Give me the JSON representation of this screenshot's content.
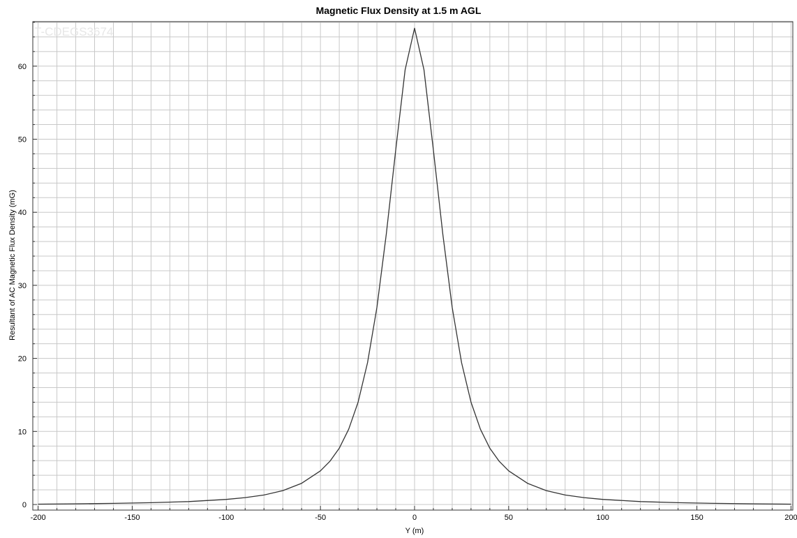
{
  "chart_data": {
    "type": "line",
    "title": "Magnetic Flux Density at 1.5 m AGL",
    "xlabel": "Y (m)",
    "ylabel": "Resultant of AC Magnetic Flux Density (mG)",
    "xlim": [
      -200,
      200
    ],
    "ylim": [
      0,
      66
    ],
    "xticks": [
      -200,
      -150,
      -100,
      -50,
      0,
      50,
      100,
      150,
      200
    ],
    "yticks": [
      0,
      10,
      20,
      30,
      40,
      50,
      60
    ],
    "grid": true,
    "watermark": "T-CDEGS3674",
    "series": [
      {
        "color": "#333333",
        "x": [
          -200,
          -180,
          -160,
          -140,
          -120,
          -100,
          -90,
          -80,
          -70,
          -60,
          -50,
          -45,
          -40,
          -35,
          -30,
          -25,
          -20,
          -15,
          -10,
          -5,
          0,
          5,
          10,
          15,
          20,
          25,
          30,
          35,
          40,
          45,
          50,
          60,
          70,
          80,
          90,
          100,
          120,
          140,
          160,
          180,
          200
        ],
        "y": [
          0.05,
          0.1,
          0.15,
          0.25,
          0.4,
          0.7,
          0.95,
          1.3,
          1.9,
          2.9,
          4.6,
          5.9,
          7.7,
          10.3,
          14.0,
          19.4,
          27.0,
          37.0,
          48.5,
          59.5,
          65.2,
          59.5,
          48.5,
          37.0,
          27.0,
          19.4,
          14.0,
          10.3,
          7.7,
          5.9,
          4.6,
          2.9,
          1.9,
          1.3,
          0.95,
          0.7,
          0.4,
          0.25,
          0.15,
          0.1,
          0.05
        ]
      }
    ]
  }
}
